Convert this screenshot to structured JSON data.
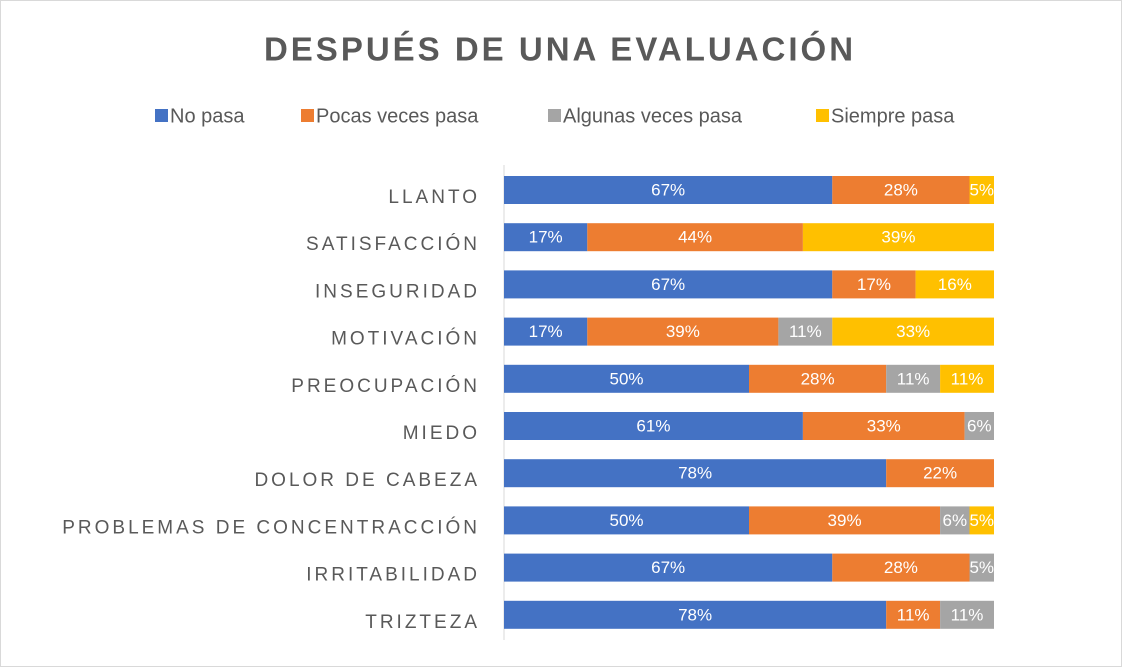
{
  "chart_data": {
    "type": "stacked-barh",
    "title": "DESPUÉS DE UNA EVALUACIÓN",
    "categories": [
      "LLANTO",
      "SATISFACCIÓN",
      "INSEGURIDAD",
      "MOTIVACIÓN",
      "PREOCUPACIÓN",
      "MIEDO",
      "DOLOR DE CABEZA",
      "PROBLEMAS DE CONCENTRACCIÓN",
      "IRRITABILIDAD",
      "TRIZTEZA"
    ],
    "series": [
      {
        "name": "No pasa",
        "color": "#4472c4",
        "values": [
          67,
          17,
          67,
          17,
          50,
          61,
          78,
          50,
          67,
          78
        ],
        "value_labels": [
          "67%",
          "17%",
          "67%",
          "17%",
          "50%",
          "61%",
          "78%",
          "50%",
          "67%",
          "78%"
        ]
      },
      {
        "name": "Pocas veces pasa",
        "color": "#ed7d31",
        "values": [
          28,
          44,
          17,
          39,
          28,
          33,
          22,
          39,
          28,
          11
        ],
        "value_labels": [
          "28%",
          "44%",
          "17%",
          "39%",
          "28%",
          "33%",
          "22%",
          "39%",
          "28%",
          "11%"
        ]
      },
      {
        "name": "Algunas veces pasa",
        "color": "#a5a5a5",
        "values": [
          null,
          null,
          null,
          11,
          11,
          6,
          null,
          6,
          5,
          11
        ],
        "value_labels": [
          null,
          null,
          null,
          "11%",
          "11%",
          "6%",
          null,
          "6%",
          "5%",
          "11%"
        ]
      },
      {
        "name": "Siempre pasa",
        "color": "#ffc000",
        "values": [
          5,
          39,
          16,
          33,
          11,
          null,
          null,
          5,
          null,
          null
        ],
        "value_labels": [
          "5%",
          "39%",
          "16%",
          "33%",
          "11%",
          null,
          null,
          "5%",
          null,
          null
        ]
      }
    ],
    "legend": "top"
  }
}
